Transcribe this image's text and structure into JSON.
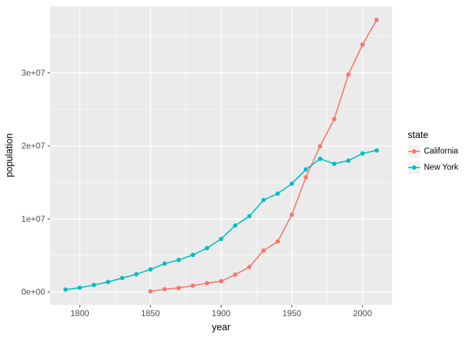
{
  "chart_data": {
    "type": "line",
    "title": "",
    "xlabel": "year",
    "ylabel": "population",
    "legend_title": "state",
    "legend_position": "right",
    "grid": true,
    "xlim": [
      1779,
      2021
    ],
    "ylim": [
      -1765471,
      39112024
    ],
    "x_ticks": [
      {
        "value": 1800,
        "label": "1800"
      },
      {
        "value": 1850,
        "label": "1850"
      },
      {
        "value": 1900,
        "label": "1900"
      },
      {
        "value": 1950,
        "label": "1950"
      },
      {
        "value": 2000,
        "label": "2000"
      }
    ],
    "y_ticks": [
      {
        "value": 0,
        "label": "0e+00"
      },
      {
        "value": 10000000,
        "label": "1e+07"
      },
      {
        "value": 20000000,
        "label": "2e+07"
      },
      {
        "value": 30000000,
        "label": "3e+07"
      }
    ],
    "x_minor": [
      1825,
      1875,
      1925,
      1975
    ],
    "y_minor": [
      5000000,
      15000000,
      25000000,
      35000000
    ],
    "colors": {
      "panel_bg": "#EBEBEB",
      "grid": "#FFFFFF",
      "tick": "#333333",
      "axis_text": "#4D4D4D",
      "legend_key_bg": "#F2F2F2"
    },
    "series": [
      {
        "name": "California",
        "color": "#F8766D",
        "x": [
          1850,
          1860,
          1870,
          1880,
          1890,
          1900,
          1910,
          1920,
          1930,
          1940,
          1950,
          1960,
          1970,
          1980,
          1990,
          2000,
          2010
        ],
        "y": [
          92597,
          379994,
          560247,
          864694,
          1213398,
          1485053,
          2377549,
          3426861,
          5677251,
          6907387,
          10586223,
          15717204,
          19953134,
          23667902,
          29760021,
          33871648,
          37253956
        ]
      },
      {
        "name": "New York",
        "color": "#00BFC4",
        "x": [
          1790,
          1800,
          1810,
          1820,
          1830,
          1840,
          1850,
          1860,
          1870,
          1880,
          1890,
          1900,
          1910,
          1920,
          1930,
          1940,
          1950,
          1960,
          1970,
          1980,
          1990,
          2000,
          2010
        ],
        "y": [
          340120,
          589051,
          959049,
          1372812,
          1918608,
          2428921,
          3097394,
          3880735,
          4382759,
          5082871,
          6003174,
          7268894,
          9113614,
          10385227,
          12588066,
          13479142,
          14830192,
          16782304,
          18236967,
          17558072,
          17990455,
          18976457,
          19378102
        ]
      }
    ]
  }
}
